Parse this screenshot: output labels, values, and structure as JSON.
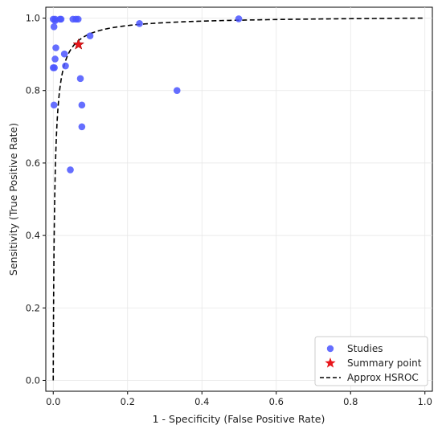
{
  "chart_data": {
    "type": "scatter",
    "xlabel": "1 - Specificity (False Positive Rate)",
    "ylabel": "Sensitivity (True Positive Rate)",
    "xlim": [
      -0.02,
      1.02
    ],
    "ylim": [
      -0.03,
      1.03
    ],
    "xticks": [
      "0.0",
      "0.2",
      "0.4",
      "0.6",
      "0.8",
      "1.0"
    ],
    "yticks": [
      "0.0",
      "0.2",
      "0.4",
      "0.6",
      "0.8",
      "1.0"
    ],
    "grid": true,
    "legend_position": "bottom-right",
    "colors": {
      "studies": "#4a55ff",
      "summary": "#e8161b",
      "curve": "#000000"
    },
    "series": [
      {
        "name": "Studies",
        "kind": "scatter",
        "points": [
          [
            0.0,
            0.997
          ],
          [
            0.005,
            0.997
          ],
          [
            0.005,
            0.993
          ],
          [
            0.018,
            0.997
          ],
          [
            0.021,
            0.997
          ],
          [
            0.053,
            0.997
          ],
          [
            0.061,
            0.997
          ],
          [
            0.067,
            0.997
          ],
          [
            0.099,
            0.951
          ],
          [
            0.232,
            0.985
          ],
          [
            0.499,
            0.998
          ],
          [
            0.002,
            0.976
          ],
          [
            0.007,
            0.918
          ],
          [
            0.03,
            0.901
          ],
          [
            0.005,
            0.887
          ],
          [
            0.033,
            0.868
          ],
          [
            0.0,
            0.863
          ],
          [
            0.003,
            0.863
          ],
          [
            0.073,
            0.833
          ],
          [
            0.333,
            0.8
          ],
          [
            0.002,
            0.76
          ],
          [
            0.077,
            0.76
          ],
          [
            0.077,
            0.7
          ],
          [
            0.046,
            0.581
          ]
        ]
      },
      {
        "name": "Summary point",
        "kind": "star",
        "points": [
          [
            0.068,
            0.927
          ]
        ]
      },
      {
        "name": "Approx HSROC",
        "kind": "curve",
        "x_range": [
          0,
          1
        ]
      }
    ]
  }
}
